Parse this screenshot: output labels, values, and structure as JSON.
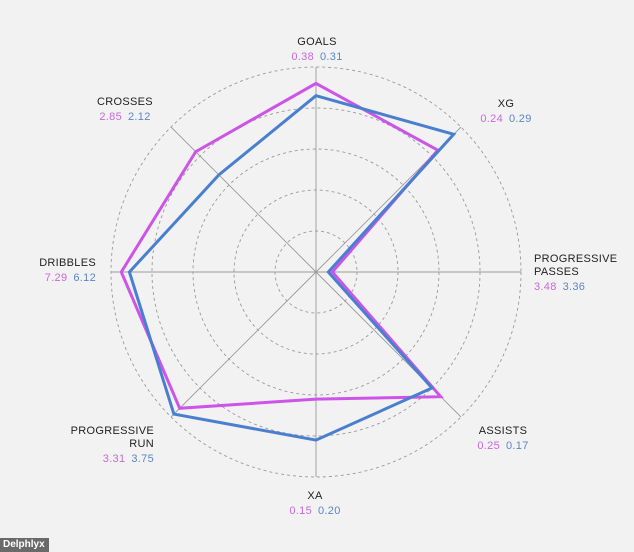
{
  "brand": "Delphlyx",
  "chart_data": {
    "type": "radar",
    "axes": [
      {
        "name": "GOALS",
        "values": [
          0.38,
          0.31
        ]
      },
      {
        "name": "XG",
        "values": [
          0.24,
          0.29
        ]
      },
      {
        "name": "PROGRESSIVE PASSES",
        "values": [
          3.48,
          3.36
        ]
      },
      {
        "name": "ASSISTS",
        "values": [
          0.25,
          0.17
        ]
      },
      {
        "name": "XA",
        "values": [
          0.15,
          0.2
        ]
      },
      {
        "name": "PROGRESSIVE RUN",
        "values": [
          3.31,
          3.75
        ]
      },
      {
        "name": "DRIBBLES",
        "values": [
          7.29,
          6.12
        ]
      },
      {
        "name": "CROSSES",
        "values": [
          2.85,
          2.12
        ]
      }
    ],
    "series_relative": [
      [
        0.92,
        0.84,
        0.08,
        0.86,
        0.62,
        0.94,
        0.95,
        0.83
      ],
      [
        0.86,
        0.95,
        0.06,
        0.8,
        0.82,
        0.98,
        0.91,
        0.67
      ]
    ],
    "colors": [
      "#cc55e8",
      "#4a7fd0"
    ],
    "grid_rings": 5
  },
  "labels": {
    "goals": {
      "name": "GOALS",
      "v1": "0.38",
      "v2": "0.31"
    },
    "xg": {
      "name": "XG",
      "v1": "0.24",
      "v2": "0.29"
    },
    "prog_passes": {
      "name1": "PROGRESSIVE",
      "name2": "PASSES",
      "v1": "3.48",
      "v2": "3.36"
    },
    "assists": {
      "name": "ASSISTS",
      "v1": "0.25",
      "v2": "0.17"
    },
    "xa": {
      "name": "XA",
      "v1": "0.15",
      "v2": "0.20"
    },
    "prog_run": {
      "name1": "PROGRESSIVE",
      "name2": "RUN",
      "v1": "3.31",
      "v2": "3.75"
    },
    "dribbles": {
      "name": "DRIBBLES",
      "v1": "7.29",
      "v2": "6.12"
    },
    "crosses": {
      "name": "CROSSES",
      "v1": "2.85",
      "v2": "2.12"
    }
  }
}
